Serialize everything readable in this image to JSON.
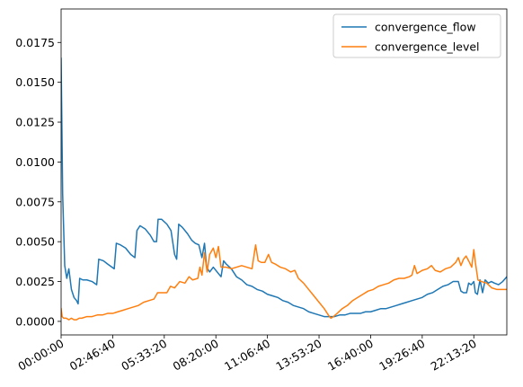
{
  "chart_data": {
    "type": "line",
    "title": "",
    "xlabel": "",
    "ylabel": "",
    "legend_position": "upper right",
    "grid": false,
    "xlim": [
      0,
      86400
    ],
    "ylim": [
      -0.00085,
      0.0196
    ],
    "x_ticks": [
      {
        "value": 0,
        "label": "00:00:00"
      },
      {
        "value": 10000,
        "label": "02:46:40"
      },
      {
        "value": 20000,
        "label": "05:33:20"
      },
      {
        "value": 30000,
        "label": "08:20:00"
      },
      {
        "value": 40000,
        "label": "11:06:40"
      },
      {
        "value": 50000,
        "label": "13:53:20"
      },
      {
        "value": 60000,
        "label": "16:40:00"
      },
      {
        "value": 70000,
        "label": "19:26:40"
      },
      {
        "value": 80000,
        "label": "22:13:20"
      }
    ],
    "y_ticks": [
      {
        "value": 0.0,
        "label": "0.0000"
      },
      {
        "value": 0.0025,
        "label": "0.0025"
      },
      {
        "value": 0.005,
        "label": "0.0050"
      },
      {
        "value": 0.0075,
        "label": "0.0075"
      },
      {
        "value": 0.01,
        "label": "0.0100"
      },
      {
        "value": 0.0125,
        "label": "0.0125"
      },
      {
        "value": 0.015,
        "label": "0.0150"
      },
      {
        "value": 0.0175,
        "label": "0.0175"
      }
    ],
    "series": [
      {
        "name": "convergence_flow",
        "color": "#1f77b4",
        "points": [
          [
            0,
            0.0165
          ],
          [
            300,
            0.008
          ],
          [
            700,
            0.0035
          ],
          [
            1100,
            0.0027
          ],
          [
            1500,
            0.0033
          ],
          [
            2000,
            0.002
          ],
          [
            2500,
            0.0015
          ],
          [
            3000,
            0.0013
          ],
          [
            3300,
            0.0011
          ],
          [
            3600,
            0.0027
          ],
          [
            4200,
            0.0026
          ],
          [
            5000,
            0.0026
          ],
          [
            6000,
            0.0025
          ],
          [
            6900,
            0.0023
          ],
          [
            7300,
            0.0039
          ],
          [
            8200,
            0.0038
          ],
          [
            9000,
            0.0036
          ],
          [
            10300,
            0.0033
          ],
          [
            10700,
            0.0049
          ],
          [
            11500,
            0.0048
          ],
          [
            12500,
            0.0046
          ],
          [
            13500,
            0.0042
          ],
          [
            14300,
            0.004
          ],
          [
            14700,
            0.0057
          ],
          [
            15300,
            0.006
          ],
          [
            16300,
            0.0058
          ],
          [
            17300,
            0.0054
          ],
          [
            18000,
            0.005
          ],
          [
            18500,
            0.005
          ],
          [
            18800,
            0.0064
          ],
          [
            19500,
            0.0064
          ],
          [
            20500,
            0.0061
          ],
          [
            21300,
            0.0057
          ],
          [
            22000,
            0.0042
          ],
          [
            22400,
            0.0039
          ],
          [
            22800,
            0.0061
          ],
          [
            23500,
            0.0059
          ],
          [
            24500,
            0.0055
          ],
          [
            25300,
            0.0051
          ],
          [
            26000,
            0.0049
          ],
          [
            26700,
            0.0048
          ],
          [
            27300,
            0.004
          ],
          [
            27800,
            0.0049
          ],
          [
            28200,
            0.0034
          ],
          [
            28800,
            0.0031
          ],
          [
            29500,
            0.0034
          ],
          [
            30500,
            0.003
          ],
          [
            31000,
            0.0028
          ],
          [
            31500,
            0.0038
          ],
          [
            32000,
            0.0036
          ],
          [
            33000,
            0.0033
          ],
          [
            34000,
            0.0028
          ],
          [
            35000,
            0.0026
          ],
          [
            36000,
            0.0023
          ],
          [
            37000,
            0.0022
          ],
          [
            38000,
            0.002
          ],
          [
            39000,
            0.0019
          ],
          [
            40000,
            0.0017
          ],
          [
            41000,
            0.0016
          ],
          [
            42000,
            0.0015
          ],
          [
            43000,
            0.0013
          ],
          [
            44000,
            0.0012
          ],
          [
            45000,
            0.001
          ],
          [
            46000,
            0.0009
          ],
          [
            47000,
            0.0008
          ],
          [
            48000,
            0.0006
          ],
          [
            49000,
            0.0005
          ],
          [
            50000,
            0.0004
          ],
          [
            51000,
            0.0003
          ],
          [
            52000,
            0.0003
          ],
          [
            53000,
            0.0003
          ],
          [
            54000,
            0.0004
          ],
          [
            55000,
            0.0004
          ],
          [
            56000,
            0.0005
          ],
          [
            57000,
            0.0005
          ],
          [
            58000,
            0.0005
          ],
          [
            59000,
            0.0006
          ],
          [
            60000,
            0.0006
          ],
          [
            61000,
            0.0007
          ],
          [
            62000,
            0.0008
          ],
          [
            63000,
            0.0008
          ],
          [
            64000,
            0.0009
          ],
          [
            65000,
            0.001
          ],
          [
            66000,
            0.0011
          ],
          [
            67000,
            0.0012
          ],
          [
            68000,
            0.0013
          ],
          [
            69000,
            0.0014
          ],
          [
            70000,
            0.0015
          ],
          [
            71000,
            0.0017
          ],
          [
            72000,
            0.0018
          ],
          [
            73000,
            0.002
          ],
          [
            74000,
            0.0022
          ],
          [
            75000,
            0.0023
          ],
          [
            76000,
            0.0025
          ],
          [
            77000,
            0.0025
          ],
          [
            77500,
            0.0019
          ],
          [
            78000,
            0.0018
          ],
          [
            78600,
            0.0018
          ],
          [
            79000,
            0.0024
          ],
          [
            79500,
            0.0023
          ],
          [
            80000,
            0.0025
          ],
          [
            80300,
            0.0018
          ],
          [
            80700,
            0.0017
          ],
          [
            81200,
            0.0026
          ],
          [
            81700,
            0.0018
          ],
          [
            82200,
            0.0026
          ],
          [
            82800,
            0.0024
          ],
          [
            83400,
            0.0025
          ],
          [
            84000,
            0.0024
          ],
          [
            84800,
            0.0023
          ],
          [
            85600,
            0.0025
          ],
          [
            86400,
            0.0028
          ]
        ]
      },
      {
        "name": "convergence_level",
        "color": "#ff7f0e",
        "points": [
          [
            0,
            0.0008
          ],
          [
            200,
            0.0003
          ],
          [
            500,
            0.0002
          ],
          [
            1000,
            0.0002
          ],
          [
            1500,
            0.0001
          ],
          [
            2000,
            0.0002
          ],
          [
            2500,
            0.0001
          ],
          [
            3000,
            0.0001
          ],
          [
            3500,
            0.0002
          ],
          [
            4000,
            0.0002
          ],
          [
            5000,
            0.0003
          ],
          [
            6000,
            0.0003
          ],
          [
            7000,
            0.0004
          ],
          [
            8000,
            0.0004
          ],
          [
            9000,
            0.0005
          ],
          [
            10000,
            0.0005
          ],
          [
            11000,
            0.0006
          ],
          [
            12000,
            0.0007
          ],
          [
            13000,
            0.0008
          ],
          [
            14000,
            0.0009
          ],
          [
            15000,
            0.001
          ],
          [
            16000,
            0.0012
          ],
          [
            17000,
            0.0013
          ],
          [
            18000,
            0.0014
          ],
          [
            18700,
            0.0018
          ],
          [
            19500,
            0.0018
          ],
          [
            20500,
            0.0018
          ],
          [
            21200,
            0.0022
          ],
          [
            22000,
            0.0021
          ],
          [
            23000,
            0.0025
          ],
          [
            24000,
            0.0024
          ],
          [
            24800,
            0.0028
          ],
          [
            25500,
            0.0026
          ],
          [
            26500,
            0.0027
          ],
          [
            26900,
            0.0034
          ],
          [
            27300,
            0.0029
          ],
          [
            27800,
            0.0043
          ],
          [
            28300,
            0.0031
          ],
          [
            28800,
            0.0042
          ],
          [
            29500,
            0.0046
          ],
          [
            30000,
            0.004
          ],
          [
            30500,
            0.0047
          ],
          [
            31000,
            0.0034
          ],
          [
            32000,
            0.0034
          ],
          [
            33000,
            0.0033
          ],
          [
            34000,
            0.0034
          ],
          [
            35000,
            0.0035
          ],
          [
            36000,
            0.0034
          ],
          [
            37000,
            0.0033
          ],
          [
            37700,
            0.0048
          ],
          [
            38200,
            0.0038
          ],
          [
            38800,
            0.0037
          ],
          [
            39500,
            0.0037
          ],
          [
            40200,
            0.0042
          ],
          [
            40800,
            0.0037
          ],
          [
            41500,
            0.0036
          ],
          [
            42500,
            0.0034
          ],
          [
            43500,
            0.0033
          ],
          [
            44500,
            0.0031
          ],
          [
            45300,
            0.0032
          ],
          [
            46000,
            0.0027
          ],
          [
            47000,
            0.0024
          ],
          [
            48000,
            0.002
          ],
          [
            49000,
            0.0016
          ],
          [
            50000,
            0.0012
          ],
          [
            51000,
            0.0008
          ],
          [
            51800,
            0.0004
          ],
          [
            52300,
            0.0002
          ],
          [
            52800,
            0.0003
          ],
          [
            53500,
            0.0005
          ],
          [
            54500,
            0.0008
          ],
          [
            55500,
            0.001
          ],
          [
            56500,
            0.0013
          ],
          [
            57500,
            0.0015
          ],
          [
            58500,
            0.0017
          ],
          [
            59500,
            0.0019
          ],
          [
            60500,
            0.002
          ],
          [
            61500,
            0.0022
          ],
          [
            62500,
            0.0023
          ],
          [
            63500,
            0.0024
          ],
          [
            64500,
            0.0026
          ],
          [
            65500,
            0.0027
          ],
          [
            66500,
            0.0027
          ],
          [
            67500,
            0.0028
          ],
          [
            68000,
            0.0029
          ],
          [
            68500,
            0.0035
          ],
          [
            69000,
            0.003
          ],
          [
            70000,
            0.0032
          ],
          [
            71000,
            0.0033
          ],
          [
            71800,
            0.0035
          ],
          [
            72500,
            0.0032
          ],
          [
            73500,
            0.0031
          ],
          [
            74500,
            0.0033
          ],
          [
            75500,
            0.0034
          ],
          [
            76500,
            0.0037
          ],
          [
            77000,
            0.004
          ],
          [
            77500,
            0.0035
          ],
          [
            78000,
            0.0039
          ],
          [
            78500,
            0.0041
          ],
          [
            79000,
            0.0038
          ],
          [
            79600,
            0.0034
          ],
          [
            80000,
            0.0045
          ],
          [
            80300,
            0.0037
          ],
          [
            80800,
            0.0026
          ],
          [
            81500,
            0.0025
          ],
          [
            82500,
            0.0024
          ],
          [
            83500,
            0.0021
          ],
          [
            84500,
            0.002
          ],
          [
            85500,
            0.002
          ],
          [
            86400,
            0.002
          ]
        ]
      }
    ]
  }
}
